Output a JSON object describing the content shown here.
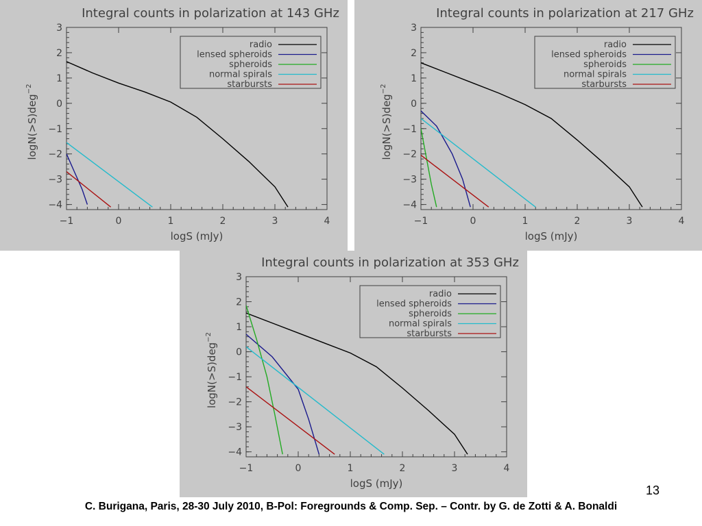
{
  "slide": {
    "number": "13",
    "footer": "C. Burigana, Paris, 28-30 July 2010, B-Pol: Foregrounds & Comp. Sep. – Contr. by G. de Zotti & A. Bonaldi"
  },
  "colors": {
    "background": "#c8c8c8",
    "radio": "#000000",
    "lensed_spheroids": "#1a1a8c",
    "spheroids": "#22aa22",
    "normal_spirals": "#22bbcc",
    "starbursts": "#aa1111"
  },
  "chart_data": [
    {
      "type": "line",
      "title": "Integral counts in polarization at 143 GHz",
      "xlabel": "logS (mJy)",
      "ylabel": "logN(>S)deg",
      "ylabel_superscript": "−2",
      "xlim": [
        -1,
        4
      ],
      "ylim": [
        -4.2,
        3
      ],
      "xticks": [
        -1,
        0,
        1,
        2,
        3,
        4
      ],
      "yticks": [
        -4,
        -3,
        -2,
        -1,
        0,
        1,
        2,
        3
      ],
      "grid": false,
      "legend_position": "top-right",
      "series": [
        {
          "name": "radio",
          "color": "#000000",
          "x": [
            -1,
            -0.5,
            0,
            0.5,
            1,
            1.5,
            2,
            2.5,
            3,
            3.25
          ],
          "y": [
            1.65,
            1.2,
            0.8,
            0.45,
            0.05,
            -0.55,
            -1.4,
            -2.3,
            -3.3,
            -4.1
          ]
        },
        {
          "name": "lensed spheroids",
          "color": "#1a1a8c",
          "x": [
            -1,
            -0.85,
            -0.7,
            -0.6
          ],
          "y": [
            -2.0,
            -2.7,
            -3.4,
            -4.0
          ]
        },
        {
          "name": "spheroids",
          "color": "#22aa22",
          "x": [],
          "y": []
        },
        {
          "name": "normal spirals",
          "color": "#22bbcc",
          "x": [
            -1,
            0.65
          ],
          "y": [
            -1.55,
            -4.1
          ]
        },
        {
          "name": "starbursts",
          "color": "#aa1111",
          "x": [
            -1,
            -0.15
          ],
          "y": [
            -2.7,
            -4.1
          ]
        }
      ]
    },
    {
      "type": "line",
      "title": "Integral counts in polarization at 217 GHz",
      "xlabel": "logS (mJy)",
      "ylabel": "logN(>S)deg",
      "ylabel_superscript": "−2",
      "xlim": [
        -1,
        4
      ],
      "ylim": [
        -4.2,
        3
      ],
      "xticks": [
        -1,
        0,
        1,
        2,
        3,
        4
      ],
      "yticks": [
        -4,
        -3,
        -2,
        -1,
        0,
        1,
        2,
        3
      ],
      "grid": false,
      "legend_position": "top-right",
      "series": [
        {
          "name": "radio",
          "color": "#000000",
          "x": [
            -1,
            -0.5,
            0,
            0.5,
            1,
            1.5,
            2,
            2.5,
            3,
            3.25
          ],
          "y": [
            1.6,
            1.2,
            0.8,
            0.4,
            -0.05,
            -0.6,
            -1.45,
            -2.35,
            -3.3,
            -4.1
          ]
        },
        {
          "name": "lensed spheroids",
          "color": "#1a1a8c",
          "x": [
            -1,
            -0.7,
            -0.4,
            -0.2,
            -0.05
          ],
          "y": [
            -0.3,
            -0.9,
            -2.0,
            -3.0,
            -4.1
          ]
        },
        {
          "name": "spheroids",
          "color": "#22aa22",
          "x": [
            -1,
            -0.9,
            -0.8,
            -0.7
          ],
          "y": [
            -1.0,
            -2.1,
            -3.2,
            -4.1
          ]
        },
        {
          "name": "normal spirals",
          "color": "#22bbcc",
          "x": [
            -1,
            1.2
          ],
          "y": [
            -0.6,
            -4.1
          ]
        },
        {
          "name": "starbursts",
          "color": "#aa1111",
          "x": [
            -1,
            0.3
          ],
          "y": [
            -2.05,
            -4.1
          ]
        }
      ]
    },
    {
      "type": "line",
      "title": "Integral counts in polarization at 353 GHz",
      "xlabel": "logS (mJy)",
      "ylabel": "logN(>S)deg",
      "ylabel_superscript": "−2",
      "xlim": [
        -1,
        4
      ],
      "ylim": [
        -4.2,
        3
      ],
      "xticks": [
        -1,
        0,
        1,
        2,
        3,
        4
      ],
      "yticks": [
        -4,
        -3,
        -2,
        -1,
        0,
        1,
        2,
        3
      ],
      "grid": false,
      "legend_position": "top-right",
      "series": [
        {
          "name": "radio",
          "color": "#000000",
          "x": [
            -1,
            -0.5,
            0,
            0.5,
            1,
            1.5,
            2,
            2.5,
            3,
            3.25
          ],
          "y": [
            1.55,
            1.15,
            0.75,
            0.35,
            -0.05,
            -0.6,
            -1.45,
            -2.35,
            -3.3,
            -4.1
          ]
        },
        {
          "name": "lensed spheroids",
          "color": "#1a1a8c",
          "x": [
            -1,
            -0.5,
            0,
            0.2,
            0.4
          ],
          "y": [
            0.7,
            -0.2,
            -1.5,
            -2.7,
            -4.1
          ]
        },
        {
          "name": "spheroids",
          "color": "#22aa22",
          "x": [
            -1,
            -0.8,
            -0.6,
            -0.45,
            -0.3
          ],
          "y": [
            1.85,
            0.5,
            -1.0,
            -2.5,
            -4.1
          ]
        },
        {
          "name": "normal spirals",
          "color": "#22bbcc",
          "x": [
            -1,
            1.65
          ],
          "y": [
            0.2,
            -4.1
          ]
        },
        {
          "name": "starbursts",
          "color": "#aa1111",
          "x": [
            -1,
            0.7
          ],
          "y": [
            -1.4,
            -4.1
          ]
        }
      ]
    }
  ]
}
